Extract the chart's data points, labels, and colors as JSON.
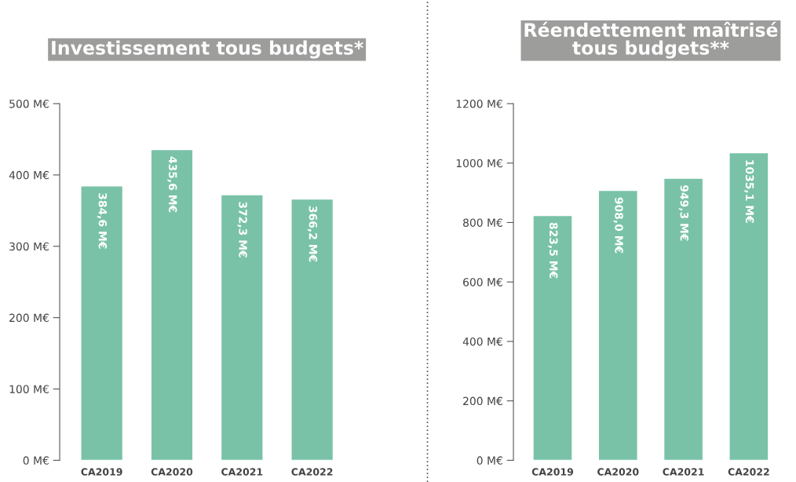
{
  "chart_data": [
    {
      "type": "bar",
      "title": "Investissement tous budgets*",
      "categories": [
        "CA2019",
        "CA2020",
        "CA2021",
        "CA2022"
      ],
      "values": [
        384.6,
        435.6,
        372.3,
        366.2
      ],
      "color": "#79c2a7",
      "value_labels": [
        "384,6 M€",
        "435,6 M€",
        "372,3 M€",
        "366,2 M€"
      ],
      "ylim": [
        0,
        500
      ],
      "yticks": [
        {
          "value": 0,
          "label": "0 M€"
        },
        {
          "value": 100,
          "label": "100 M€"
        },
        {
          "value": 200,
          "label": "200 M€"
        },
        {
          "value": 300,
          "label": "300 M€"
        },
        {
          "value": 400,
          "label": "400 M€"
        },
        {
          "value": 500,
          "label": "500 M€"
        }
      ],
      "grid": false,
      "legend": false
    },
    {
      "type": "bar",
      "title": "Réendettement maîtrisé\ntous budgets**",
      "categories": [
        "CA2019",
        "CA2020",
        "CA2021",
        "CA2022"
      ],
      "values": [
        823.5,
        908.0,
        949.3,
        1035.1
      ],
      "color": "#79c2a7",
      "value_labels": [
        "823,5 M€",
        "908,0 M€",
        "949,3 M€",
        "1035,1 M€"
      ],
      "ylim": [
        0,
        1200
      ],
      "yticks": [
        {
          "value": 0,
          "label": "0 M€"
        },
        {
          "value": 200,
          "label": "200 M€"
        },
        {
          "value": 400,
          "label": "400 M€"
        },
        {
          "value": 600,
          "label": "600 M€"
        },
        {
          "value": 800,
          "label": "800 M€"
        },
        {
          "value": 1000,
          "label": "1000 M€"
        },
        {
          "value": 1200,
          "label": "1200 M€"
        }
      ],
      "grid": false,
      "legend": false
    }
  ]
}
